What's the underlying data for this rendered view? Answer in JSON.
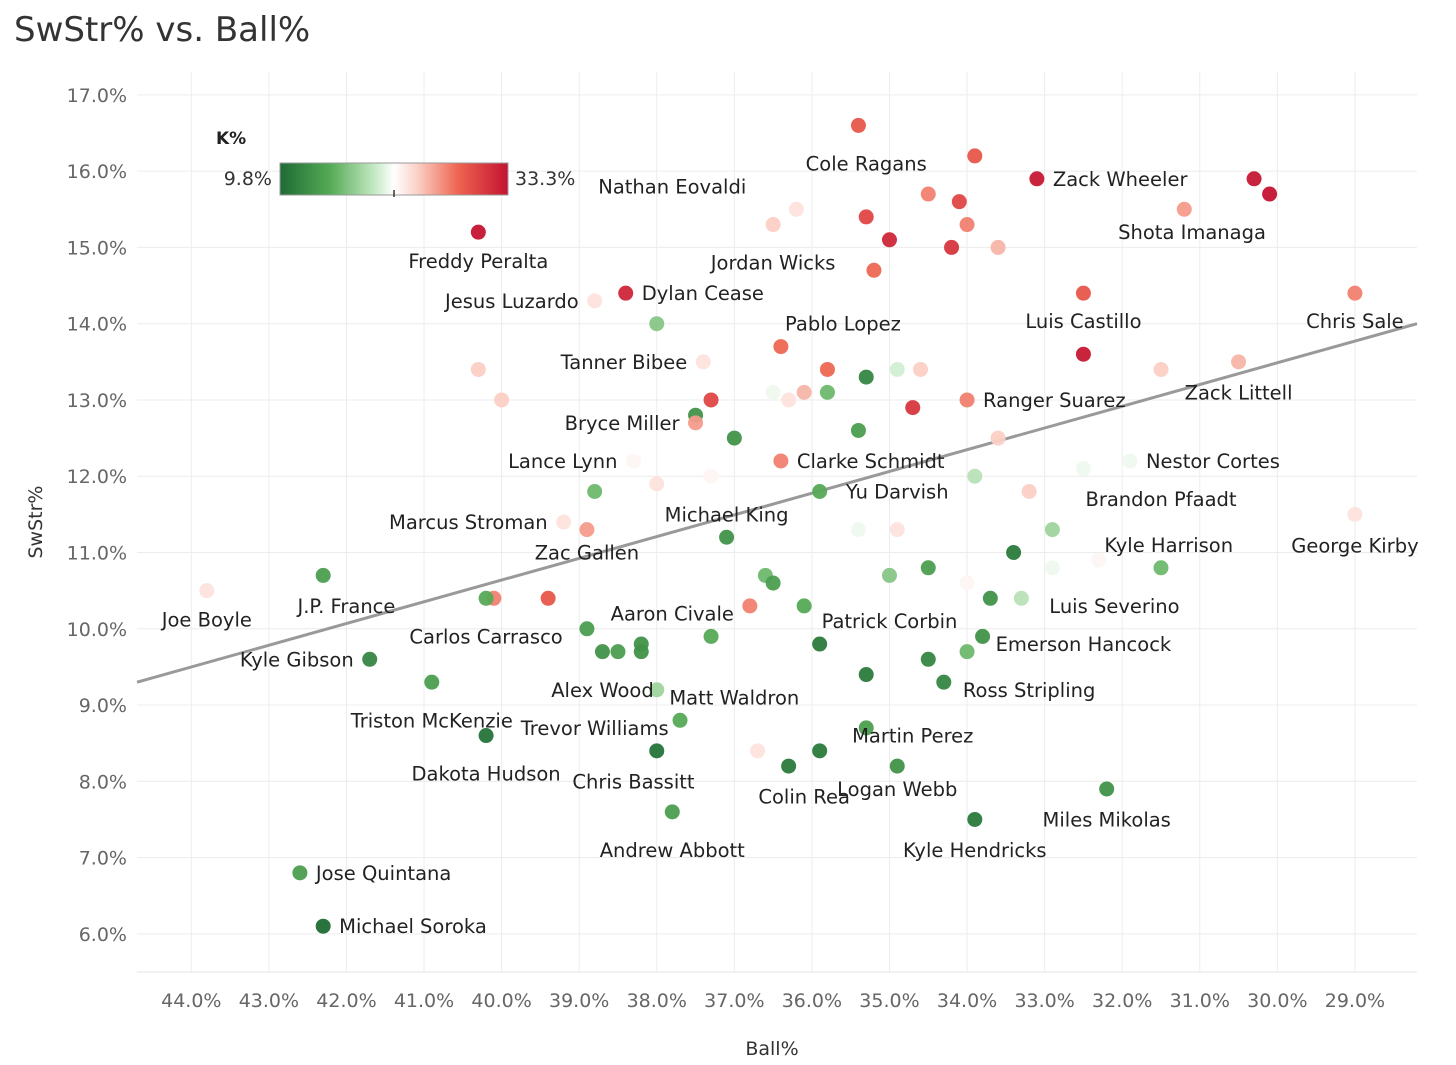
{
  "title": "SwStr% vs. Ball%",
  "chart_data": {
    "type": "scatter",
    "title": "SwStr% vs. Ball%",
    "xlabel": "Ball%",
    "ylabel": "SwStr%",
    "x_reversed": true,
    "xlim": [
      44.7,
      28.2
    ],
    "ylim": [
      5.5,
      17.3
    ],
    "x_ticks": [
      44,
      43,
      42,
      41,
      40,
      39,
      38,
      37,
      36,
      35,
      34,
      33,
      32,
      31,
      30,
      29
    ],
    "x_tick_labels": [
      "44.0%",
      "43.0%",
      "42.0%",
      "41.0%",
      "40.0%",
      "39.0%",
      "38.0%",
      "37.0%",
      "36.0%",
      "35.0%",
      "34.0%",
      "33.0%",
      "32.0%",
      "31.0%",
      "30.0%",
      "29.0%"
    ],
    "y_ticks": [
      6,
      7,
      8,
      9,
      10,
      11,
      12,
      13,
      14,
      15,
      16,
      17
    ],
    "y_tick_labels": [
      "6.0%",
      "7.0%",
      "8.0%",
      "9.0%",
      "10.0%",
      "11.0%",
      "12.0%",
      "13.0%",
      "14.0%",
      "15.0%",
      "16.0%",
      "17.0%"
    ],
    "grid": true,
    "trendline": {
      "x": [
        44.7,
        28.2
      ],
      "y": [
        9.3,
        14.0
      ],
      "color": "#999999"
    },
    "color_legend": {
      "title": "K%",
      "min": 9.8,
      "max": 33.3,
      "min_label": "9.8%",
      "max_label": "33.3%",
      "low_color": "#1e6b35",
      "mid_color": "#ffffff",
      "high_color": "#c41331",
      "position": "top-left"
    },
    "points": [
      {
        "x": 35.4,
        "y": 16.6,
        "k": 29
      },
      {
        "x": 33.9,
        "y": 16.2,
        "k": 29
      },
      {
        "x": 33.1,
        "y": 15.9,
        "k": 33,
        "label": "Zack Wheeler"
      },
      {
        "x": 30.3,
        "y": 15.9,
        "k": 33
      },
      {
        "x": 30.1,
        "y": 15.7,
        "k": 33.3
      },
      {
        "x": 34.5,
        "y": 15.7,
        "k": 27
      },
      {
        "x": 34.1,
        "y": 15.6,
        "k": 30
      },
      {
        "x": 31.2,
        "y": 15.5,
        "k": 26
      },
      {
        "x": 36.2,
        "y": 15.5,
        "k": 23
      },
      {
        "x": 36.5,
        "y": 15.3,
        "k": 24
      },
      {
        "x": 35.3,
        "y": 15.4,
        "k": 30
      },
      {
        "x": 34.0,
        "y": 15.3,
        "k": 27
      },
      {
        "x": 35.0,
        "y": 15.1,
        "k": 32
      },
      {
        "x": 34.2,
        "y": 15.0,
        "k": 31
      },
      {
        "x": 33.6,
        "y": 15.0,
        "k": 25
      },
      {
        "x": 40.3,
        "y": 15.2,
        "k": 33.3,
        "label": "Freddy Peralta"
      },
      {
        "x": 35.2,
        "y": 14.7,
        "k": 28
      },
      {
        "x": 38.4,
        "y": 14.4,
        "k": 32,
        "label": "Dylan Cease"
      },
      {
        "x": 38.8,
        "y": 14.3,
        "k": 23,
        "label": "Jesus Luzardo"
      },
      {
        "x": 32.5,
        "y": 14.4,
        "k": 29,
        "label": "Luis Castillo"
      },
      {
        "x": 29.0,
        "y": 14.4,
        "k": 27,
        "label": "Chris Sale"
      },
      {
        "x": 38.0,
        "y": 14.0,
        "k": 17
      },
      {
        "x": 32.5,
        "y": 13.6,
        "k": 33
      },
      {
        "x": 36.4,
        "y": 13.7,
        "k": 28
      },
      {
        "x": 37.4,
        "y": 13.5,
        "k": 23,
        "label": "Tanner Bibee"
      },
      {
        "x": 30.5,
        "y": 13.5,
        "k": 25
      },
      {
        "x": 40.3,
        "y": 13.4,
        "k": 24
      },
      {
        "x": 35.8,
        "y": 13.4,
        "k": 28
      },
      {
        "x": 34.6,
        "y": 13.4,
        "k": 24
      },
      {
        "x": 35.3,
        "y": 13.3,
        "k": 12
      },
      {
        "x": 34.9,
        "y": 13.4,
        "k": 20
      },
      {
        "x": 31.5,
        "y": 13.4,
        "k": 24
      },
      {
        "x": 36.1,
        "y": 13.1,
        "k": 25
      },
      {
        "x": 36.5,
        "y": 13.1,
        "k": 21
      },
      {
        "x": 36.3,
        "y": 13.0,
        "k": 23
      },
      {
        "x": 35.8,
        "y": 13.1,
        "k": 16
      },
      {
        "x": 37.3,
        "y": 13.0,
        "k": 30
      },
      {
        "x": 40.0,
        "y": 13.0,
        "k": 24
      },
      {
        "x": 34.0,
        "y": 13.0,
        "k": 27,
        "label": "Ranger Suarez"
      },
      {
        "x": 34.7,
        "y": 12.9,
        "k": 31
      },
      {
        "x": 37.5,
        "y": 12.8,
        "k": 13
      },
      {
        "x": 37.5,
        "y": 12.7,
        "k": 26,
        "label": "Bryce Miller"
      },
      {
        "x": 37.0,
        "y": 12.5,
        "k": 13
      },
      {
        "x": 35.4,
        "y": 12.6,
        "k": 14
      },
      {
        "x": 33.6,
        "y": 12.5,
        "k": 24
      },
      {
        "x": 38.3,
        "y": 12.2,
        "k": 22,
        "label": "Lance Lynn"
      },
      {
        "x": 36.4,
        "y": 12.2,
        "k": 27,
        "label": "Clarke Schmidt"
      },
      {
        "x": 31.9,
        "y": 12.2,
        "k": 21,
        "label": "Nestor Cortes"
      },
      {
        "x": 32.5,
        "y": 12.1,
        "k": 21
      },
      {
        "x": 37.3,
        "y": 12.0,
        "k": 22
      },
      {
        "x": 38.0,
        "y": 11.9,
        "k": 23
      },
      {
        "x": 33.9,
        "y": 12.0,
        "k": 19
      },
      {
        "x": 38.8,
        "y": 11.8,
        "k": 16
      },
      {
        "x": 35.9,
        "y": 11.8,
        "k": 15
      },
      {
        "x": 33.2,
        "y": 11.8,
        "k": 24
      },
      {
        "x": 29.0,
        "y": 11.5,
        "k": 23,
        "label": "George Kirby"
      },
      {
        "x": 39.2,
        "y": 11.4,
        "k": 23,
        "label": "Marcus Stroman"
      },
      {
        "x": 38.9,
        "y": 11.3,
        "k": 26
      },
      {
        "x": 35.4,
        "y": 11.3,
        "k": 21
      },
      {
        "x": 34.9,
        "y": 11.3,
        "k": 23
      },
      {
        "x": 37.1,
        "y": 11.2,
        "k": 13
      },
      {
        "x": 33.4,
        "y": 11.0,
        "k": 11
      },
      {
        "x": 32.9,
        "y": 11.3,
        "k": 18
      },
      {
        "x": 32.3,
        "y": 10.9,
        "k": 22
      },
      {
        "x": 32.9,
        "y": 10.8,
        "k": 21
      },
      {
        "x": 31.5,
        "y": 10.8,
        "k": 16
      },
      {
        "x": 34.5,
        "y": 10.8,
        "k": 14
      },
      {
        "x": 42.3,
        "y": 10.7,
        "k": 14
      },
      {
        "x": 36.6,
        "y": 10.7,
        "k": 16
      },
      {
        "x": 36.5,
        "y": 10.6,
        "k": 14
      },
      {
        "x": 35.0,
        "y": 10.7,
        "k": 17
      },
      {
        "x": 34.0,
        "y": 10.6,
        "k": 22
      },
      {
        "x": 33.7,
        "y": 10.4,
        "k": 13
      },
      {
        "x": 33.3,
        "y": 10.4,
        "k": 19
      },
      {
        "x": 43.8,
        "y": 10.5,
        "k": 23,
        "label": "Joe Boyle"
      },
      {
        "x": 40.1,
        "y": 10.4,
        "k": 27
      },
      {
        "x": 40.2,
        "y": 10.4,
        "k": 15
      },
      {
        "x": 39.4,
        "y": 10.4,
        "k": 29
      },
      {
        "x": 36.8,
        "y": 10.3,
        "k": 27
      },
      {
        "x": 36.1,
        "y": 10.3,
        "k": 15
      },
      {
        "x": 38.9,
        "y": 10.0,
        "k": 14
      },
      {
        "x": 37.3,
        "y": 9.9,
        "k": 15
      },
      {
        "x": 38.2,
        "y": 9.8,
        "k": 13
      },
      {
        "x": 38.2,
        "y": 9.7,
        "k": 13
      },
      {
        "x": 38.5,
        "y": 9.7,
        "k": 14
      },
      {
        "x": 38.7,
        "y": 9.7,
        "k": 13
      },
      {
        "x": 35.9,
        "y": 9.8,
        "k": 11
      },
      {
        "x": 33.8,
        "y": 9.9,
        "k": 13
      },
      {
        "x": 34.0,
        "y": 9.7,
        "k": 16
      },
      {
        "x": 41.7,
        "y": 9.6,
        "k": 12,
        "label": "Kyle Gibson"
      },
      {
        "x": 34.5,
        "y": 9.6,
        "k": 12
      },
      {
        "x": 35.3,
        "y": 9.4,
        "k": 11
      },
      {
        "x": 40.9,
        "y": 9.3,
        "k": 14
      },
      {
        "x": 34.3,
        "y": 9.3,
        "k": 12
      },
      {
        "x": 38.0,
        "y": 9.2,
        "k": 18
      },
      {
        "x": 37.7,
        "y": 8.8,
        "k": 15
      },
      {
        "x": 35.3,
        "y": 8.7,
        "k": 14
      },
      {
        "x": 40.2,
        "y": 8.6,
        "k": 10.5
      },
      {
        "x": 38.0,
        "y": 8.4,
        "k": 10.5
      },
      {
        "x": 35.9,
        "y": 8.4,
        "k": 11
      },
      {
        "x": 36.7,
        "y": 8.4,
        "k": 23
      },
      {
        "x": 36.3,
        "y": 8.2,
        "k": 11
      },
      {
        "x": 34.9,
        "y": 8.2,
        "k": 13
      },
      {
        "x": 32.2,
        "y": 7.9,
        "k": 13
      },
      {
        "x": 37.8,
        "y": 7.6,
        "k": 14
      },
      {
        "x": 33.9,
        "y": 7.5,
        "k": 11
      },
      {
        "x": 42.6,
        "y": 6.8,
        "k": 14,
        "label": "Jose Quintana"
      },
      {
        "x": 42.3,
        "y": 6.1,
        "k": 9.8,
        "label": "Michael Soroka"
      }
    ],
    "free_labels": [
      {
        "text": "Cole Ragans",
        "x": 35.3,
        "y": 16.1
      },
      {
        "text": "Nathan Eovaldi",
        "x": 37.8,
        "y": 15.8
      },
      {
        "text": "Shota Imanaga",
        "x": 31.1,
        "y": 15.2
      },
      {
        "text": "Jordan Wicks",
        "x": 36.5,
        "y": 14.8
      },
      {
        "text": "Pablo Lopez",
        "x": 35.6,
        "y": 14.0
      },
      {
        "text": "Zack Littell",
        "x": 30.5,
        "y": 13.1
      },
      {
        "text": "Brandon Pfaadt",
        "x": 31.5,
        "y": 11.7
      },
      {
        "text": "Michael King",
        "x": 37.1,
        "y": 11.5
      },
      {
        "text": "Yu Darvish",
        "x": 34.9,
        "y": 11.8
      },
      {
        "text": "Kyle Harrison",
        "x": 31.4,
        "y": 11.1
      },
      {
        "text": "Zac Gallen",
        "x": 38.9,
        "y": 11.0
      },
      {
        "text": "J.P. France",
        "x": 42.0,
        "y": 10.3
      },
      {
        "text": "Luis Severino",
        "x": 32.1,
        "y": 10.3
      },
      {
        "text": "Aaron Civale",
        "x": 37.8,
        "y": 10.2
      },
      {
        "text": "Patrick Corbin",
        "x": 35.0,
        "y": 10.1
      },
      {
        "text": "Carlos Carrasco",
        "x": 40.2,
        "y": 9.9
      },
      {
        "text": "Emerson Hancock",
        "x": 32.5,
        "y": 9.8
      },
      {
        "text": "Alex Wood",
        "x": 38.7,
        "y": 9.2
      },
      {
        "text": "Ross Stripling",
        "x": 33.2,
        "y": 9.2
      },
      {
        "text": "Matt Waldron",
        "x": 37.0,
        "y": 9.1
      },
      {
        "text": "Triston McKenzie",
        "x": 40.9,
        "y": 8.8
      },
      {
        "text": "Trevor Williams",
        "x": 38.8,
        "y": 8.7
      },
      {
        "text": "Martin Perez",
        "x": 34.7,
        "y": 8.6
      },
      {
        "text": "Dakota Hudson",
        "x": 40.2,
        "y": 8.1
      },
      {
        "text": "Chris Bassitt",
        "x": 38.3,
        "y": 8.0
      },
      {
        "text": "Colin Rea",
        "x": 36.1,
        "y": 7.8
      },
      {
        "text": "Logan Webb",
        "x": 34.9,
        "y": 7.9
      },
      {
        "text": "Miles Mikolas",
        "x": 32.2,
        "y": 7.5
      },
      {
        "text": "Andrew Abbott",
        "x": 37.8,
        "y": 7.1
      },
      {
        "text": "Kyle Hendricks",
        "x": 33.9,
        "y": 7.1
      }
    ]
  }
}
